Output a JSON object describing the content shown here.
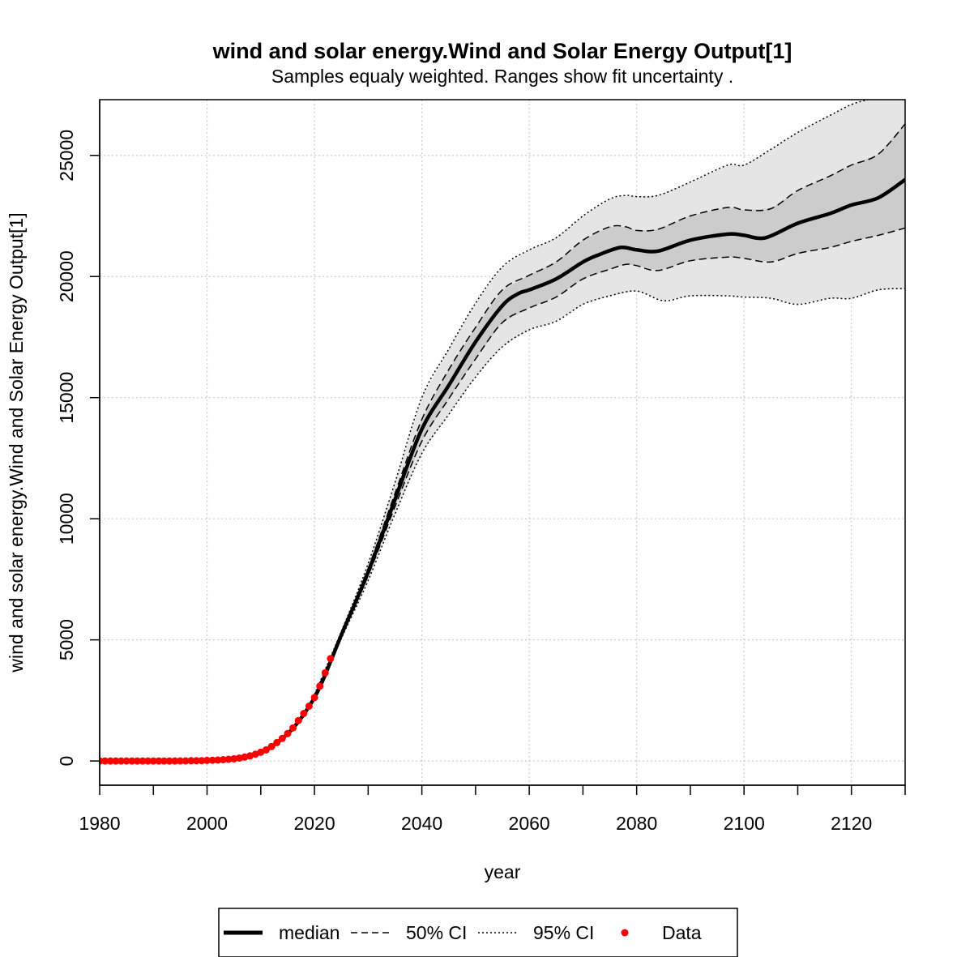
{
  "chart_data": {
    "type": "line",
    "title": "wind and solar energy.Wind and Solar Energy Output[1]",
    "subtitle": "Samples equaly weighted. Ranges show  fit uncertainty .",
    "xlabel": "year",
    "ylabel": "wind and solar energy.Wind and Solar Energy Output[1]",
    "xlim": [
      1980,
      2130
    ],
    "ylim": [
      -1000,
      27300
    ],
    "x_ticks": [
      1980,
      2000,
      2020,
      2040,
      2060,
      2080,
      2100,
      2120
    ],
    "x_minor_ticks": [
      1990,
      2010,
      2030,
      2050,
      2070,
      2090,
      2110,
      2130
    ],
    "y_ticks": [
      0,
      5000,
      10000,
      15000,
      20000,
      25000
    ],
    "grid": true,
    "legend_position": "bottom",
    "legend": [
      {
        "key": "median",
        "label": "median"
      },
      {
        "key": "ci50",
        "label": "50% CI"
      },
      {
        "key": "ci95",
        "label": "95% CI"
      },
      {
        "key": "data",
        "label": "Data"
      }
    ],
    "series": [
      {
        "name": "median",
        "x": [
          1980,
          1990,
          2000,
          2005,
          2010,
          2013,
          2016,
          2019,
          2021,
          2023,
          2025,
          2030,
          2035,
          2040,
          2045,
          2050,
          2055,
          2058,
          2060,
          2065,
          2070,
          2073,
          2077,
          2080,
          2084,
          2090,
          2097,
          2100,
          2104,
          2110,
          2116,
          2120,
          2125,
          2130
        ],
        "y": [
          0,
          5,
          40,
          120,
          350,
          750,
          1350,
          2250,
          3050,
          4100,
          5200,
          7800,
          10800,
          13700,
          15500,
          17300,
          18800,
          19300,
          19450,
          19900,
          20600,
          20900,
          21200,
          21100,
          21050,
          21500,
          21750,
          21700,
          21600,
          22200,
          22600,
          22950,
          23250,
          24000
        ]
      },
      {
        "name": "50% CI lower",
        "x": [
          2020,
          2025,
          2030,
          2035,
          2040,
          2045,
          2050,
          2055,
          2060,
          2065,
          2070,
          2075,
          2078,
          2080,
          2084,
          2090,
          2097,
          2100,
          2105,
          2110,
          2116,
          2120,
          2125,
          2130
        ],
        "y": [
          2600,
          5150,
          7650,
          10500,
          13200,
          14950,
          16600,
          18100,
          18700,
          19150,
          19900,
          20300,
          20500,
          20450,
          20250,
          20650,
          20800,
          20750,
          20600,
          20950,
          21200,
          21450,
          21700,
          22000
        ]
      },
      {
        "name": "50% CI upper",
        "x": [
          2020,
          2025,
          2030,
          2035,
          2040,
          2045,
          2050,
          2055,
          2060,
          2065,
          2070,
          2075,
          2078,
          2080,
          2084,
          2090,
          2097,
          2100,
          2105,
          2110,
          2116,
          2120,
          2125,
          2130
        ],
        "y": [
          2700,
          5250,
          7950,
          11050,
          14100,
          16150,
          17900,
          19450,
          20050,
          20600,
          21500,
          22050,
          22050,
          21900,
          21950,
          22500,
          22850,
          22750,
          22800,
          23550,
          24150,
          24600,
          25050,
          26300
        ]
      },
      {
        "name": "95% CI lower",
        "x": [
          2020,
          2025,
          2030,
          2035,
          2040,
          2045,
          2050,
          2055,
          2060,
          2065,
          2070,
          2075,
          2080,
          2085,
          2090,
          2097,
          2100,
          2105,
          2110,
          2116,
          2120,
          2125,
          2130
        ],
        "y": [
          2550,
          5050,
          7450,
          10200,
          12700,
          14300,
          15850,
          17100,
          17800,
          18150,
          18850,
          19200,
          19400,
          19000,
          19200,
          19200,
          19150,
          19100,
          18850,
          19100,
          19100,
          19450,
          19500
        ]
      },
      {
        "name": "95% CI upper",
        "x": [
          2020,
          2025,
          2030,
          2035,
          2040,
          2045,
          2050,
          2055,
          2060,
          2065,
          2070,
          2075,
          2078,
          2080,
          2084,
          2090,
          2097,
          2100,
          2105,
          2110,
          2116,
          2120,
          2123,
          2125,
          2130
        ],
        "y": [
          2750,
          5350,
          8150,
          11500,
          15000,
          17000,
          18900,
          20400,
          21100,
          21600,
          22500,
          23200,
          23350,
          23300,
          23350,
          23900,
          24600,
          24600,
          25250,
          25950,
          26650,
          27100,
          27300,
          27450,
          27700
        ]
      },
      {
        "name": "Data",
        "x": [
          1980,
          1981,
          1982,
          1983,
          1984,
          1985,
          1986,
          1987,
          1988,
          1989,
          1990,
          1991,
          1992,
          1993,
          1994,
          1995,
          1996,
          1997,
          1998,
          1999,
          2000,
          2001,
          2002,
          2003,
          2004,
          2005,
          2006,
          2007,
          2008,
          2009,
          2010,
          2011,
          2012,
          2013,
          2014,
          2015,
          2016,
          2017,
          2018,
          2019,
          2020,
          2021,
          2022,
          2023
        ],
        "y": [
          0,
          0,
          0,
          0,
          0,
          0,
          0,
          0,
          0,
          0,
          0,
          0,
          0,
          0,
          0,
          5,
          5,
          10,
          10,
          15,
          25,
          30,
          40,
          55,
          70,
          90,
          120,
          160,
          210,
          280,
          360,
          460,
          600,
          760,
          930,
          1130,
          1370,
          1670,
          1960,
          2260,
          2620,
          3090,
          3640,
          4230
        ]
      }
    ]
  },
  "colors": {
    "band95": "#e5e5e5",
    "band50": "#cccccc",
    "grid": "#cccccc",
    "data_points": "#ff0000",
    "lines": "#000000"
  }
}
